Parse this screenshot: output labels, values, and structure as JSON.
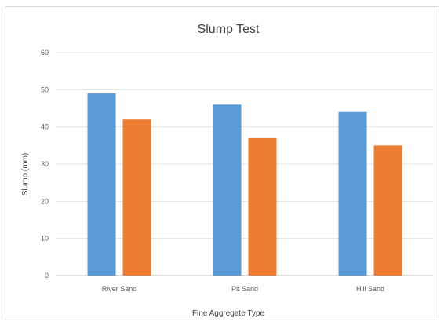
{
  "chart_data": {
    "type": "bar",
    "title": "Slump Test",
    "xlabel": "Fine Aggregate Type",
    "ylabel": "Slump (mm)",
    "categories": [
      "River Sand",
      "Pit Sand",
      "Hill Sand"
    ],
    "ylim": [
      0,
      60
    ],
    "yticks": [
      0,
      10,
      20,
      30,
      40,
      50,
      60
    ],
    "grid": true,
    "legend": "none",
    "series": [
      {
        "values": [
          49,
          46,
          44
        ],
        "color": "#5b9bd5"
      },
      {
        "values": [
          42,
          37,
          35
        ],
        "color": "#ed7d31"
      }
    ]
  }
}
